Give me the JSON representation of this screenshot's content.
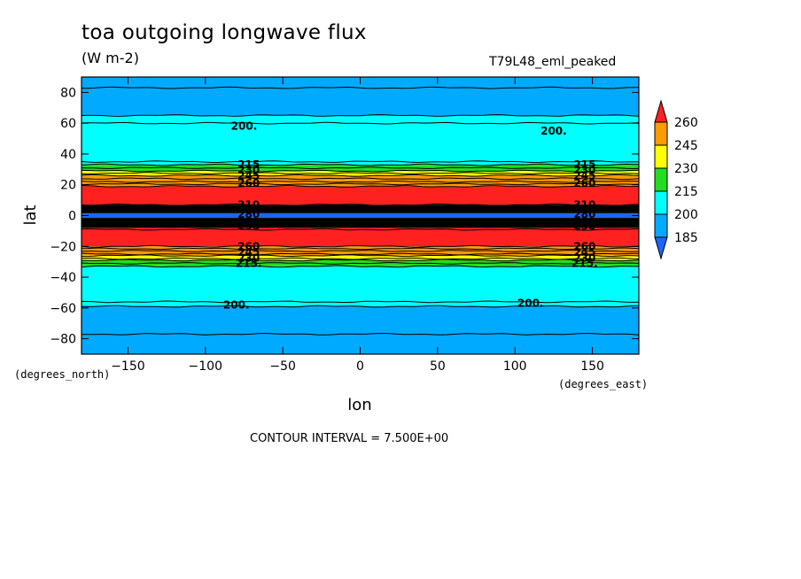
{
  "chart_data": {
    "type": "heatmap",
    "title": "toa outgoing longwave flux",
    "units": "(W m-2)",
    "run_label": "T79L48_eml_peaked",
    "xlabel": "lon",
    "ylabel": "lat",
    "x_units_label": "(degrees_east)",
    "y_units_label": "(degrees_north)",
    "xlim": [
      -180,
      180
    ],
    "ylim": [
      -90,
      90
    ],
    "x_ticks": [
      -150,
      -100,
      -50,
      0,
      50,
      100,
      150
    ],
    "y_ticks": [
      -80,
      -60,
      -40,
      -20,
      0,
      20,
      40,
      60,
      80
    ],
    "x_tick_labels": [
      "−150",
      "−100",
      "−50",
      "0",
      "50",
      "100",
      "150"
    ],
    "y_tick_labels": [
      "−80",
      "−60",
      "−40",
      "−20",
      "0",
      "20",
      "40",
      "60",
      "80"
    ],
    "colorbar": {
      "labels": [
        "260",
        "245",
        "230",
        "215",
        "200",
        "185"
      ],
      "colors": [
        "#ff2020",
        "#ff9a00",
        "#ffff00",
        "#22dd22",
        "#00ffff",
        "#00aaff",
        "#1e64ff"
      ]
    },
    "bands": [
      {
        "lat_min": 65,
        "lat_max": 90,
        "color": "#00aaff"
      },
      {
        "lat_min": 33,
        "lat_max": 65,
        "color": "#00ffff"
      },
      {
        "lat_min": 29,
        "lat_max": 33,
        "color": "#22dd22"
      },
      {
        "lat_min": 26,
        "lat_max": 29,
        "color": "#ffff00"
      },
      {
        "lat_min": 19,
        "lat_max": 26,
        "color": "#ff9a00"
      },
      {
        "lat_min": 7,
        "lat_max": 19,
        "color": "#ff2020"
      },
      {
        "lat_min": 1.5,
        "lat_max": 7,
        "color": "#000000"
      },
      {
        "lat_min": -1.5,
        "lat_max": 1.5,
        "color": "#1e64ff"
      },
      {
        "lat_min": -8,
        "lat_max": -1.5,
        "color": "#000000"
      },
      {
        "lat_min": -20,
        "lat_max": -8,
        "color": "#ff2020"
      },
      {
        "lat_min": -26,
        "lat_max": -20,
        "color": "#ff9a00"
      },
      {
        "lat_min": -29,
        "lat_max": -26,
        "color": "#ffff00"
      },
      {
        "lat_min": -33,
        "lat_max": -29,
        "color": "#22dd22"
      },
      {
        "lat_min": -59,
        "lat_max": -33,
        "color": "#00ffff"
      },
      {
        "lat_min": -90,
        "lat_max": -59,
        "color": "#00aaff"
      }
    ],
    "contour_lines_lat": [
      83,
      65,
      60,
      35,
      33,
      31,
      29,
      27.5,
      26,
      24,
      22,
      20.5,
      19,
      7,
      5,
      3,
      -3,
      -5,
      -7,
      -9,
      -20,
      -21.5,
      -23,
      -25,
      -26,
      -28,
      -29,
      -31,
      -33,
      -56,
      -59,
      -77
    ],
    "contour_labels": [
      {
        "text": "200.",
        "lon": -75,
        "lat": 58
      },
      {
        "text": "200.",
        "lon": 125,
        "lat": 55
      },
      {
        "text": "215",
        "lon": -72,
        "lat": 33
      },
      {
        "text": "230",
        "lon": -72,
        "lat": 29.5
      },
      {
        "text": "245",
        "lon": -72,
        "lat": 26
      },
      {
        "text": "260",
        "lon": -72,
        "lat": 21
      },
      {
        "text": "215",
        "lon": 145,
        "lat": 33
      },
      {
        "text": "230",
        "lon": 145,
        "lat": 29.5
      },
      {
        "text": "245",
        "lon": 145,
        "lat": 26
      },
      {
        "text": "260",
        "lon": 145,
        "lat": 21
      },
      {
        "text": "310",
        "lon": -72,
        "lat": 7
      },
      {
        "text": "290",
        "lon": -72,
        "lat": 4
      },
      {
        "text": "280",
        "lon": -72,
        "lat": 1
      },
      {
        "text": "280",
        "lon": -72,
        "lat": -4
      },
      {
        "text": "290",
        "lon": -72,
        "lat": -7
      },
      {
        "text": "310",
        "lon": 145,
        "lat": 7
      },
      {
        "text": "290",
        "lon": 145,
        "lat": 4
      },
      {
        "text": "280",
        "lon": 145,
        "lat": 1
      },
      {
        "text": "280",
        "lon": 145,
        "lat": -4
      },
      {
        "text": "290",
        "lon": 145,
        "lat": -7
      },
      {
        "text": "260",
        "lon": -72,
        "lat": -20
      },
      {
        "text": "245",
        "lon": -72,
        "lat": -24
      },
      {
        "text": "230",
        "lon": -72,
        "lat": -27.5
      },
      {
        "text": "215.",
        "lon": -72,
        "lat": -31
      },
      {
        "text": "260",
        "lon": 145,
        "lat": -20
      },
      {
        "text": "245",
        "lon": 145,
        "lat": -24
      },
      {
        "text": "230",
        "lon": 145,
        "lat": -27.5
      },
      {
        "text": "215.",
        "lon": 145,
        "lat": -31
      },
      {
        "text": "200.",
        "lon": -80,
        "lat": -58
      },
      {
        "text": "200.",
        "lon": 110,
        "lat": -57
      }
    ],
    "contour_interval_text": "CONTOUR INTERVAL = 7.500E+00",
    "grid": false,
    "legend": "colorbar-right"
  }
}
